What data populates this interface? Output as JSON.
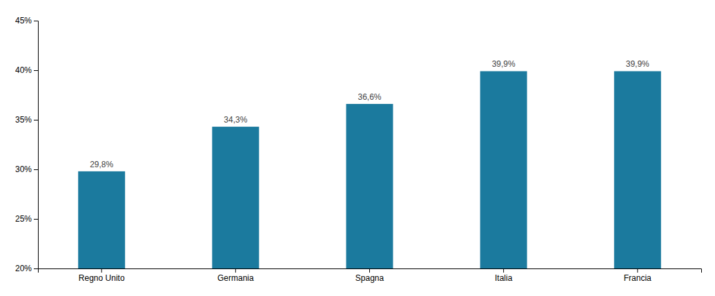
{
  "chart_data": {
    "type": "bar",
    "categories": [
      "Regno Unito",
      "Germania",
      "Spagna",
      "Italia",
      "Francia"
    ],
    "values": [
      29.8,
      34.3,
      36.6,
      39.9,
      39.9
    ],
    "value_labels": [
      "29,8%",
      "34,3%",
      "36,6%",
      "39,9%",
      "39,9%"
    ],
    "color": "#1b7a9e",
    "ylim": [
      20,
      45
    ],
    "yticks": [
      {
        "value": 20,
        "label": "20%"
      },
      {
        "value": 25,
        "label": "25%"
      },
      {
        "value": 30,
        "label": "30%"
      },
      {
        "value": 35,
        "label": "35%"
      },
      {
        "value": 40,
        "label": "40%"
      },
      {
        "value": 45,
        "label": "45%"
      }
    ],
    "grid": false,
    "data_labels": true
  }
}
